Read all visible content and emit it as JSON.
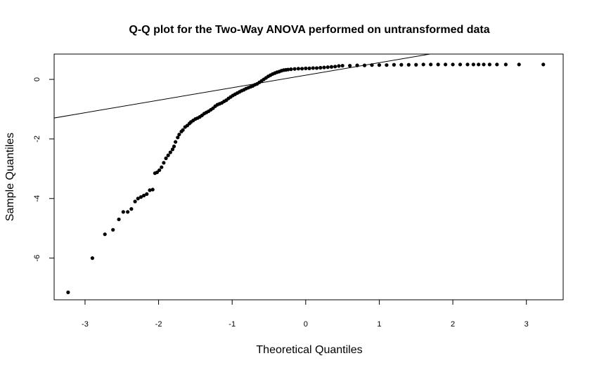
{
  "chart_data": {
    "type": "scatter",
    "title": "Q-Q plot for the Two-Way ANOVA performed on untransformed data",
    "xlabel": "Theoretical Quantiles",
    "ylabel": "Sample Quantiles",
    "xlim": [
      -3.42,
      3.5
    ],
    "ylim": [
      -7.4,
      0.85
    ],
    "xticks": [
      -3,
      -2,
      -1,
      0,
      1,
      2,
      3
    ],
    "yticks": [
      -6,
      -4,
      -2,
      0
    ],
    "grid": false,
    "legend": "none",
    "point_color": "#000000",
    "line_color": "#000000",
    "reference_line": {
      "intercept": 0.14,
      "slope": 0.42
    },
    "points": [
      [
        -3.23,
        -7.15
      ],
      [
        -2.9,
        -6.0
      ],
      [
        -2.73,
        -5.2
      ],
      [
        -2.62,
        -5.05
      ],
      [
        -2.54,
        -4.7
      ],
      [
        -2.48,
        -4.45
      ],
      [
        -2.42,
        -4.45
      ],
      [
        -2.37,
        -4.35
      ],
      [
        -2.32,
        -4.1
      ],
      [
        -2.28,
        -4.0
      ],
      [
        -2.24,
        -3.95
      ],
      [
        -2.2,
        -3.9
      ],
      [
        -2.16,
        -3.85
      ],
      [
        -2.12,
        -3.72
      ],
      [
        -2.08,
        -3.7
      ],
      [
        -2.05,
        -3.15
      ],
      [
        -2.02,
        -3.12
      ],
      [
        -1.99,
        -3.05
      ],
      [
        -1.96,
        -2.95
      ],
      [
        -1.93,
        -2.8
      ],
      [
        -1.9,
        -2.65
      ],
      [
        -1.87,
        -2.55
      ],
      [
        -1.84,
        -2.45
      ],
      [
        -1.81,
        -2.35
      ],
      [
        -1.79,
        -2.25
      ],
      [
        -1.77,
        -2.1
      ],
      [
        -1.74,
        -1.95
      ],
      [
        -1.72,
        -1.85
      ],
      [
        -1.69,
        -1.75
      ],
      [
        -1.67,
        -1.7
      ],
      [
        -1.64,
        -1.6
      ],
      [
        -1.61,
        -1.55
      ],
      [
        -1.58,
        -1.48
      ],
      [
        -1.56,
        -1.43
      ],
      [
        -1.53,
        -1.38
      ],
      [
        -1.5,
        -1.33
      ],
      [
        -1.47,
        -1.3
      ],
      [
        -1.44,
        -1.26
      ],
      [
        -1.41,
        -1.21
      ],
      [
        -1.38,
        -1.15
      ],
      [
        -1.35,
        -1.11
      ],
      [
        -1.32,
        -1.07
      ],
      [
        -1.29,
        -1.02
      ],
      [
        -1.26,
        -0.97
      ],
      [
        -1.23,
        -0.9
      ],
      [
        -1.2,
        -0.85
      ],
      [
        -1.17,
        -0.82
      ],
      [
        -1.14,
        -0.79
      ],
      [
        -1.11,
        -0.74
      ],
      [
        -1.08,
        -0.7
      ],
      [
        -1.05,
        -0.64
      ],
      [
        -1.02,
        -0.59
      ],
      [
        -0.99,
        -0.54
      ],
      [
        -0.96,
        -0.5
      ],
      [
        -0.93,
        -0.46
      ],
      [
        -0.9,
        -0.42
      ],
      [
        -0.87,
        -0.38
      ],
      [
        -0.84,
        -0.35
      ],
      [
        -0.81,
        -0.31
      ],
      [
        -0.78,
        -0.28
      ],
      [
        -0.75,
        -0.25
      ],
      [
        -0.72,
        -0.22
      ],
      [
        -0.69,
        -0.18
      ],
      [
        -0.66,
        -0.15
      ],
      [
        -0.63,
        -0.1
      ],
      [
        -0.6,
        -0.05
      ],
      [
        -0.57,
        0.0
      ],
      [
        -0.54,
        0.05
      ],
      [
        -0.51,
        0.1
      ],
      [
        -0.48,
        0.14
      ],
      [
        -0.45,
        0.18
      ],
      [
        -0.42,
        0.21
      ],
      [
        -0.39,
        0.24
      ],
      [
        -0.36,
        0.26
      ],
      [
        -0.33,
        0.29
      ],
      [
        -0.3,
        0.31
      ],
      [
        -0.27,
        0.32
      ],
      [
        -0.24,
        0.33
      ],
      [
        -0.2,
        0.34
      ],
      [
        -0.15,
        0.35
      ],
      [
        -0.1,
        0.36
      ],
      [
        -0.05,
        0.36
      ],
      [
        0.0,
        0.37
      ],
      [
        0.05,
        0.37
      ],
      [
        0.1,
        0.38
      ],
      [
        0.15,
        0.38
      ],
      [
        0.2,
        0.39
      ],
      [
        0.25,
        0.4
      ],
      [
        0.3,
        0.41
      ],
      [
        0.35,
        0.42
      ],
      [
        0.4,
        0.43
      ],
      [
        0.45,
        0.45
      ],
      [
        0.5,
        0.46
      ],
      [
        0.6,
        0.46
      ],
      [
        0.7,
        0.47
      ],
      [
        0.8,
        0.47
      ],
      [
        0.9,
        0.48
      ],
      [
        1.0,
        0.48
      ],
      [
        1.1,
        0.48
      ],
      [
        1.2,
        0.49
      ],
      [
        1.3,
        0.49
      ],
      [
        1.4,
        0.49
      ],
      [
        1.5,
        0.49
      ],
      [
        1.6,
        0.5
      ],
      [
        1.7,
        0.5
      ],
      [
        1.8,
        0.5
      ],
      [
        1.9,
        0.5
      ],
      [
        2.0,
        0.5
      ],
      [
        2.1,
        0.5
      ],
      [
        2.2,
        0.5
      ],
      [
        2.28,
        0.5
      ],
      [
        2.35,
        0.5
      ],
      [
        2.42,
        0.5
      ],
      [
        2.5,
        0.5
      ],
      [
        2.6,
        0.5
      ],
      [
        2.72,
        0.5
      ],
      [
        2.9,
        0.5
      ],
      [
        3.23,
        0.5
      ]
    ]
  }
}
